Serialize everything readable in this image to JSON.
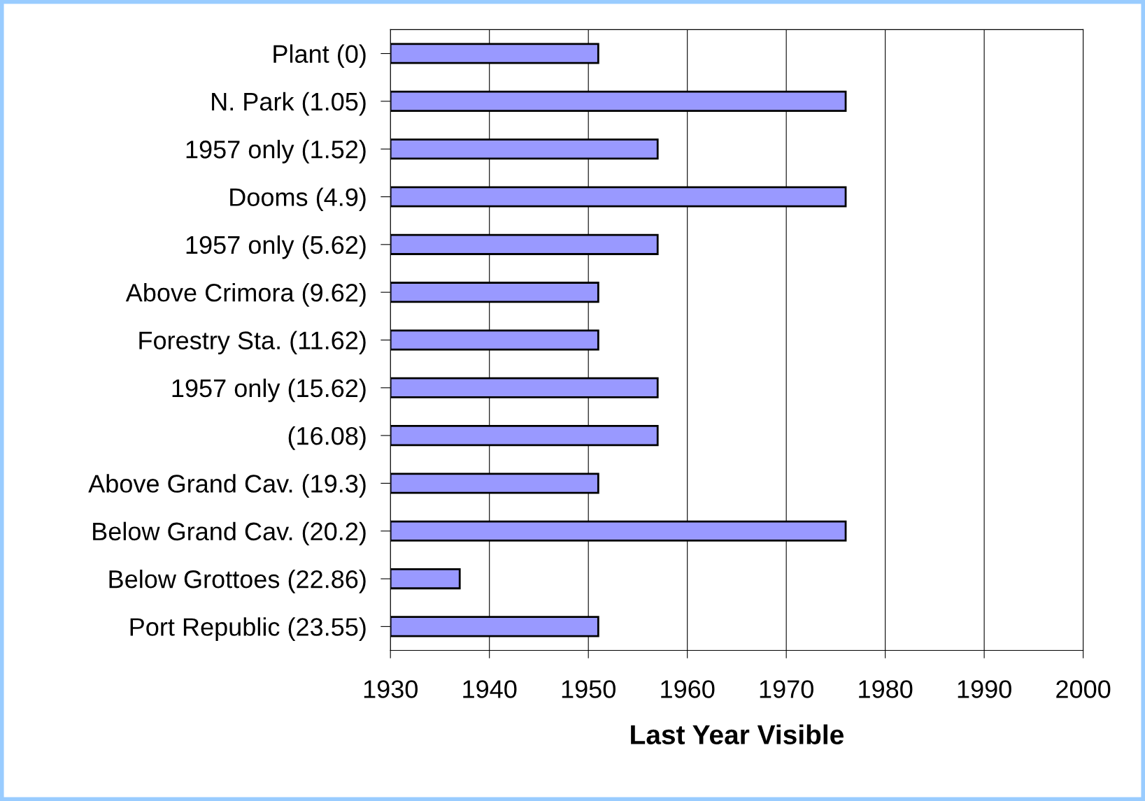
{
  "chart_data": {
    "type": "bar",
    "orientation": "horizontal",
    "categories": [
      "Plant (0)",
      "N. Park (1.05)",
      "1957 only (1.52)",
      "Dooms (4.9)",
      "1957 only (5.62)",
      "Above Crimora (9.62)",
      "Forestry Sta. (11.62)",
      "1957 only (15.62)",
      "(16.08)",
      "Above Grand Cav. (19.3)",
      "Below Grand Cav. (20.2)",
      "Below Grottoes (22.86)",
      "Port Republic (23.55)"
    ],
    "values": [
      1951,
      1976,
      1957,
      1976,
      1957,
      1951,
      1951,
      1957,
      1957,
      1951,
      1976,
      1937,
      1951
    ],
    "color": "#9999ff",
    "xlabel": "Last Year Visible",
    "xlim": [
      1930,
      2000
    ],
    "xticks": [
      1930,
      1940,
      1950,
      1960,
      1970,
      1980,
      1990,
      2000
    ],
    "grid": "x"
  }
}
